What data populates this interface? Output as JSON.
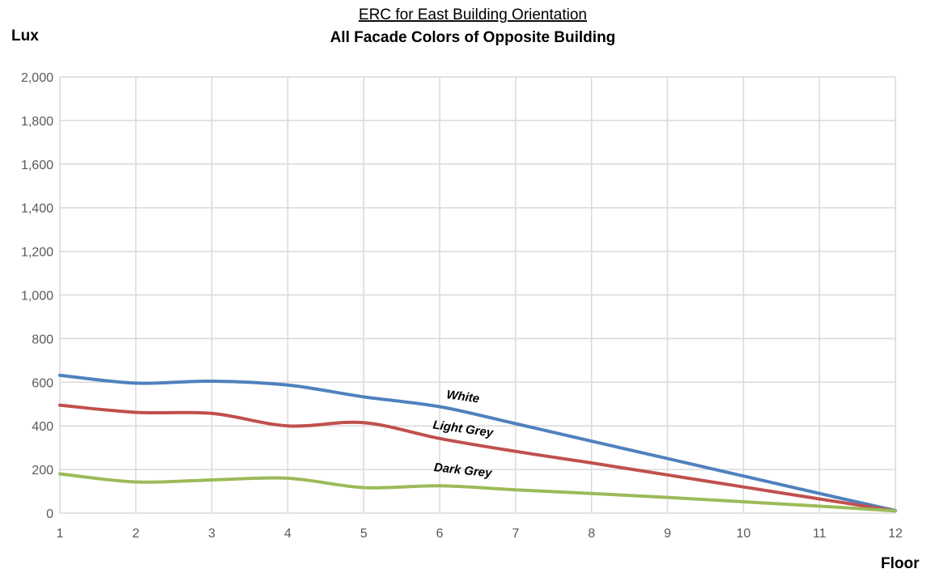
{
  "chart_data": {
    "type": "line",
    "title": "ERC for East Building  Orientation",
    "subtitle": "All Facade  Colors of Opposite Building",
    "ylabel": "Lux",
    "xlabel": "Floor",
    "x": [
      1,
      2,
      3,
      4,
      5,
      6,
      7,
      8,
      9,
      10,
      11,
      12
    ],
    "ylim": [
      0,
      2000
    ],
    "yticks": [
      0,
      200,
      400,
      600,
      800,
      1000,
      1200,
      1400,
      1600,
      1800,
      2000
    ],
    "ytick_labels": [
      "0",
      "200",
      "400",
      "600",
      "800",
      "1,000",
      "1,200",
      "1,400",
      "1,600",
      "1,800",
      "2,000"
    ],
    "grid": true,
    "legend": "inline labels on lines",
    "series": [
      {
        "name": "White",
        "color": "#4f81bd",
        "values": [
          632,
          596,
          605,
          587,
          533,
          488,
          410,
          330,
          250,
          170,
          90,
          12
        ]
      },
      {
        "name": "Light Grey",
        "color": "#c0504d",
        "values": [
          495,
          462,
          457,
          400,
          415,
          342,
          283,
          230,
          175,
          120,
          65,
          10
        ]
      },
      {
        "name": "Dark Grey",
        "color": "#9bbb59",
        "values": [
          180,
          143,
          152,
          160,
          117,
          125,
          107,
          90,
          72,
          52,
          32,
          10
        ]
      }
    ]
  }
}
